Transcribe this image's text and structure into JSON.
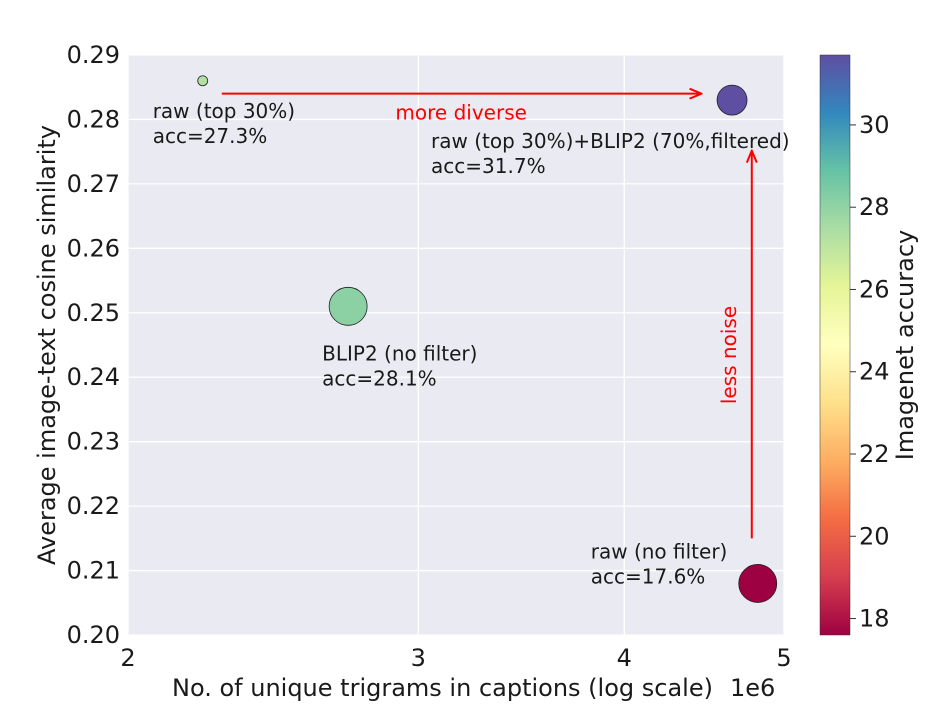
{
  "chart_data": {
    "type": "scatter",
    "xlabel": "No. of unique trigrams in captions (log scale)",
    "x_offset_label": "1e6",
    "ylabel": "Average image-text cosine similarity",
    "x_scale": "log",
    "xlim": [
      2,
      5
    ],
    "ylim": [
      0.2,
      0.29
    ],
    "x_ticks": [
      "2",
      "3",
      "4",
      "5"
    ],
    "y_ticks": [
      "0.20",
      "0.21",
      "0.22",
      "0.23",
      "0.24",
      "0.25",
      "0.26",
      "0.27",
      "0.28",
      "0.29"
    ],
    "grid": true,
    "points": [
      {
        "x": 2.22,
        "y": 0.286,
        "acc": 27.3,
        "label": "raw (top 30%)",
        "acc_text": "acc=27.3%",
        "size": "small"
      },
      {
        "x": 2.72,
        "y": 0.251,
        "acc": 28.1,
        "label": "BLIP2 (no filter)",
        "acc_text": "acc=28.1%",
        "size": "medium"
      },
      {
        "x": 4.65,
        "y": 0.283,
        "acc": 31.7,
        "label": "raw (top 30%)+BLIP2 (70%,filtered)",
        "acc_text": "acc=31.7%",
        "size": "medium-small"
      },
      {
        "x": 4.82,
        "y": 0.208,
        "acc": 17.6,
        "label": "raw (no filter)",
        "acc_text": "acc=17.6%",
        "size": "medium"
      }
    ],
    "arrows": [
      {
        "text": "more diverse",
        "from": [
          2.28,
          0.284
        ],
        "to": [
          4.45,
          0.284
        ],
        "direction": "horizontal"
      },
      {
        "text": "less noise",
        "from": [
          4.78,
          0.215
        ],
        "to": [
          4.78,
          0.275
        ],
        "direction": "vertical"
      }
    ],
    "colorbar": {
      "label": "Imagenet accuracy",
      "range": [
        17.6,
        31.7
      ],
      "ticks": [
        "18",
        "20",
        "22",
        "24",
        "26",
        "28",
        "30"
      ],
      "colormap": "Spectral"
    }
  }
}
